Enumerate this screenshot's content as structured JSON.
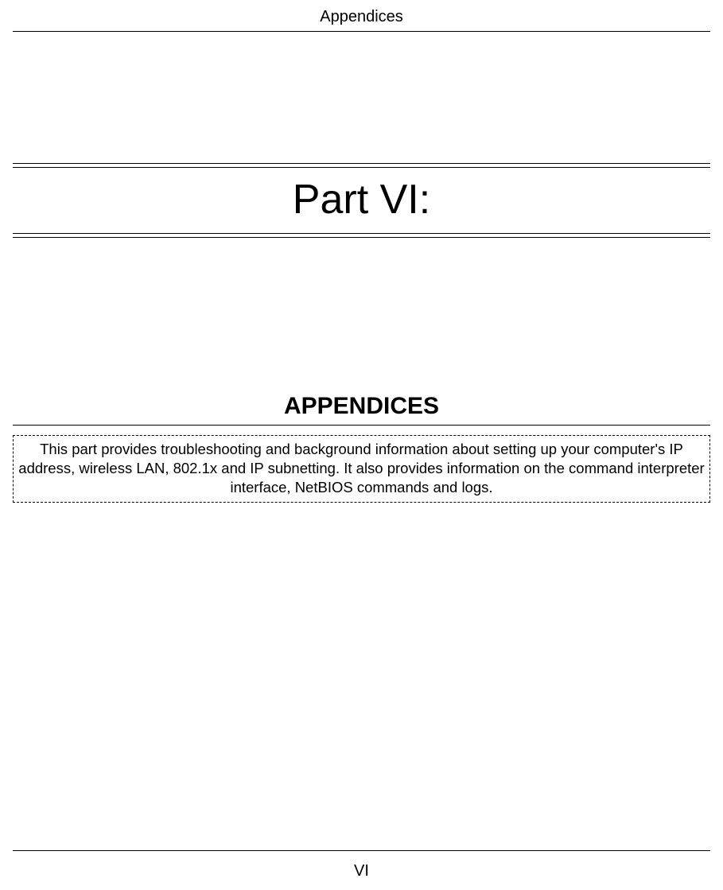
{
  "header": {
    "title": "Appendices"
  },
  "part": {
    "title": "Part VI:",
    "title_fontsize": 52,
    "title_color": "#000000"
  },
  "appendices": {
    "heading": "APPENDICES",
    "heading_fontsize": 30,
    "heading_weight": "bold",
    "description": "This part provides troubleshooting and background information about setting up your computer's IP address, wireless LAN, 802.1x and IP subnetting. It also provides information on the command interpreter interface, NetBIOS commands and logs.",
    "description_fontsize": 18.5,
    "box_border_style": "dashed",
    "box_border_color": "#000000"
  },
  "footer": {
    "page_number": "VI"
  },
  "colors": {
    "background": "#ffffff",
    "text": "#000000",
    "rule": "#000000"
  }
}
